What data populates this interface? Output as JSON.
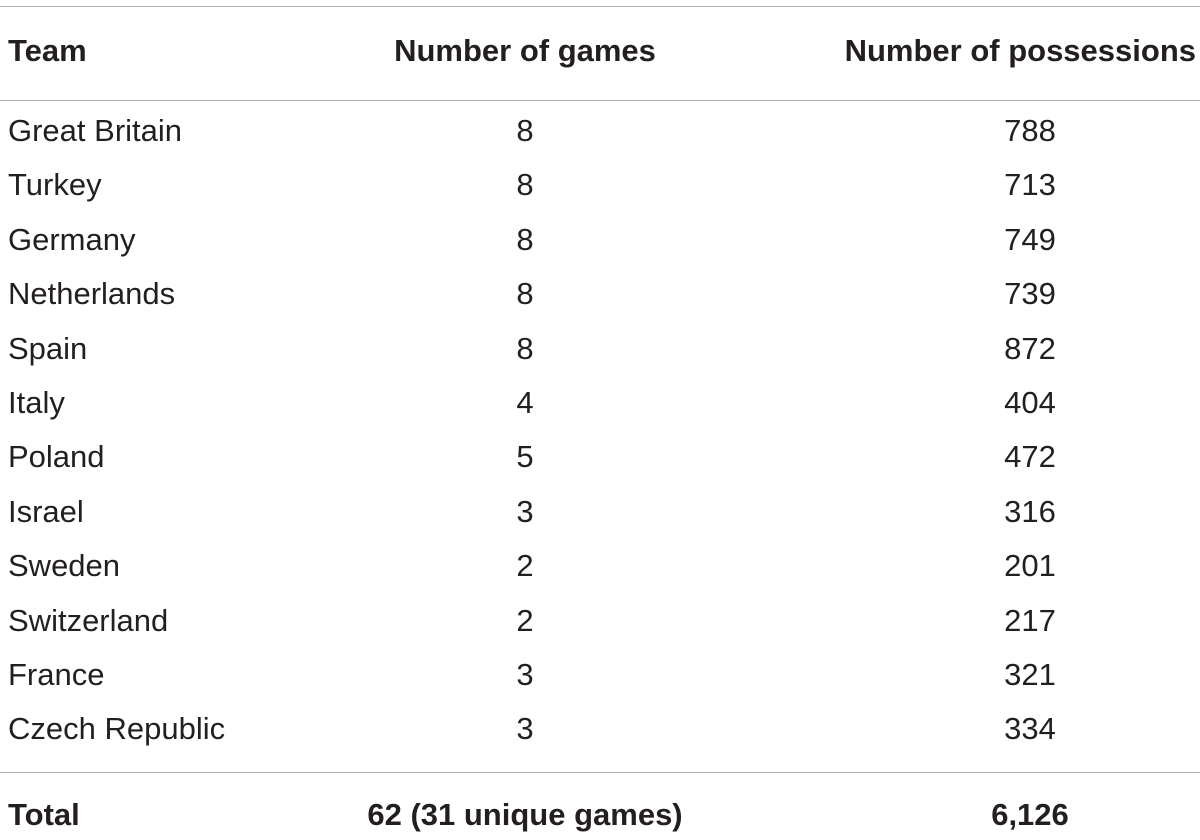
{
  "headers": {
    "team": "Team",
    "games": "Number of games",
    "possessions": "Number of possessions"
  },
  "rows": [
    {
      "team": "Great Britain",
      "games": "8",
      "possessions": "788"
    },
    {
      "team": "Turkey",
      "games": "8",
      "possessions": "713"
    },
    {
      "team": "Germany",
      "games": "8",
      "possessions": "749"
    },
    {
      "team": "Netherlands",
      "games": "8",
      "possessions": "739"
    },
    {
      "team": "Spain",
      "games": "8",
      "possessions": "872"
    },
    {
      "team": "Italy",
      "games": "4",
      "possessions": "404"
    },
    {
      "team": "Poland",
      "games": "5",
      "possessions": "472"
    },
    {
      "team": "Israel",
      "games": "3",
      "possessions": "316"
    },
    {
      "team": "Sweden",
      "games": "2",
      "possessions": "201"
    },
    {
      "team": "Switzerland",
      "games": "2",
      "possessions": "217"
    },
    {
      "team": "France",
      "games": "3",
      "possessions": "321"
    },
    {
      "team": "Czech Republic",
      "games": "3",
      "possessions": "334"
    }
  ],
  "total": {
    "label": "Total",
    "games": "62 (31 unique games)",
    "possessions": "6,126"
  }
}
